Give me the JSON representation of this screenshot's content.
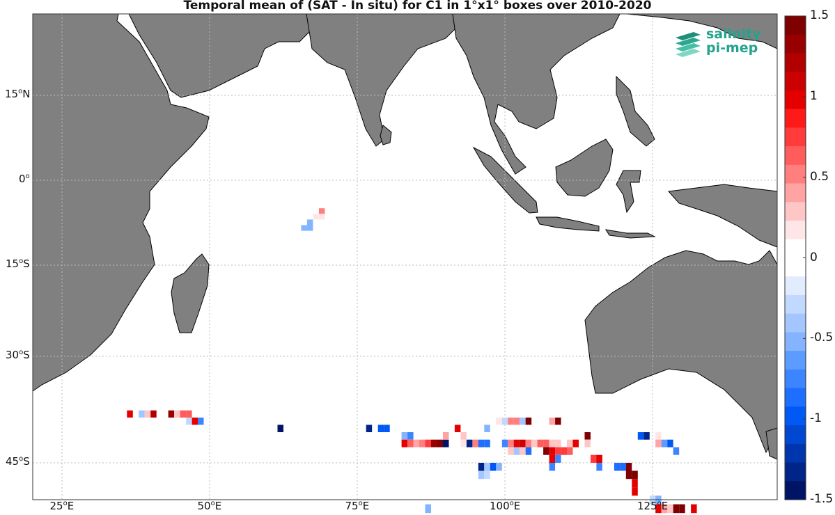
{
  "title": "Temporal mean of (SAT - In situ) for C1 in 1°x1° boxes over 2010-2020",
  "logo": {
    "line1": "salinity",
    "line2": "pi-mep",
    "icon": "wave-stack-icon",
    "color": "#21a38c"
  },
  "lon_ticks": [
    {
      "value": 25,
      "label": "25",
      "suffix": "E"
    },
    {
      "value": 50,
      "label": "50",
      "suffix": "E"
    },
    {
      "value": 75,
      "label": "75",
      "suffix": "E"
    },
    {
      "value": 100,
      "label": "100",
      "suffix": "E"
    },
    {
      "value": 125,
      "label": "125",
      "suffix": "E"
    }
  ],
  "lat_ticks": [
    {
      "value": 15,
      "label": "15",
      "suffix": "N"
    },
    {
      "value": 0,
      "label": "0",
      "suffix": ""
    },
    {
      "value": -15,
      "label": "15",
      "suffix": "S"
    },
    {
      "value": -30,
      "label": "30",
      "suffix": "S"
    },
    {
      "value": -45,
      "label": "45",
      "suffix": "S"
    }
  ],
  "colorbar": {
    "min": -1.5,
    "max": 1.5,
    "tick_labels": [
      "1.5",
      "1",
      "0.5",
      "0",
      "-0.5",
      "-1",
      "-1.5"
    ],
    "tick_values": [
      1.5,
      1,
      0.5,
      0,
      -0.5,
      -1,
      -1.5
    ],
    "colors_top_to_bottom": [
      "#7f0000",
      "#980000",
      "#b20000",
      "#cb0000",
      "#e50000",
      "#ff1a1a",
      "#ff3b3b",
      "#ff5c5c",
      "#ff7f7f",
      "#ffa3a3",
      "#ffc6c6",
      "#ffe6e6",
      "#ffffff",
      "#ffffff",
      "#e1ecff",
      "#c2d9ff",
      "#a3c6ff",
      "#84b3ff",
      "#5c9bff",
      "#3d85ff",
      "#1e6fff",
      "#0059f5",
      "#0047d1",
      "#0036ad",
      "#002589",
      "#001466"
    ]
  },
  "chart_data": {
    "type": "heatmap",
    "title": "Temporal mean of (SAT - In situ) for C1 in 1°x1° boxes over 2010-2020",
    "xlabel": "",
    "ylabel": "",
    "xlim": [
      20,
      146
    ],
    "ylim": [
      -50,
      28
    ],
    "colorscale_range": [
      -1.5,
      1.5
    ],
    "grid": true,
    "cells": [
      {
        "lon": 69,
        "lat": -5.5,
        "v": 0.5
      },
      {
        "lon": 68,
        "lat": -6.5,
        "v": 0.2
      },
      {
        "lon": 69,
        "lat": -6.5,
        "v": 0.2
      },
      {
        "lon": 67,
        "lat": -7.5,
        "v": -0.5
      },
      {
        "lon": 66,
        "lat": -8.5,
        "v": -0.5
      },
      {
        "lon": 67,
        "lat": -8.5,
        "v": -0.5
      },
      {
        "lon": 36.5,
        "lat": -38.5,
        "v": 1.0
      },
      {
        "lon": 38.5,
        "lat": -38.5,
        "v": -0.4
      },
      {
        "lon": 39.5,
        "lat": -38.5,
        "v": 0.3
      },
      {
        "lon": 40.5,
        "lat": -38.5,
        "v": 1.2
      },
      {
        "lon": 43.5,
        "lat": -38.5,
        "v": 1.3
      },
      {
        "lon": 44.5,
        "lat": -38.5,
        "v": 0.3
      },
      {
        "lon": 45.5,
        "lat": -38.5,
        "v": 0.6
      },
      {
        "lon": 46.5,
        "lat": -38.5,
        "v": 0.6
      },
      {
        "lon": 46.5,
        "lat": -39.5,
        "v": -0.3
      },
      {
        "lon": 47.5,
        "lat": -39.5,
        "v": 1.0
      },
      {
        "lon": 48.5,
        "lat": -39.5,
        "v": -0.7
      },
      {
        "lon": 62,
        "lat": -40.5,
        "v": -1.5
      },
      {
        "lon": 77,
        "lat": -40.5,
        "v": -1.3
      },
      {
        "lon": 79,
        "lat": -40.5,
        "v": -1.0
      },
      {
        "lon": 80,
        "lat": -40.5,
        "v": -1.0
      },
      {
        "lon": 83,
        "lat": -41.5,
        "v": -0.5
      },
      {
        "lon": 84,
        "lat": -41.5,
        "v": -0.8
      },
      {
        "lon": 83,
        "lat": -42.5,
        "v": 1.0
      },
      {
        "lon": 84,
        "lat": -42.5,
        "v": 0.6
      },
      {
        "lon": 85,
        "lat": -42.5,
        "v": 0.4
      },
      {
        "lon": 86,
        "lat": -42.5,
        "v": 0.5
      },
      {
        "lon": 87,
        "lat": -42.5,
        "v": 0.8
      },
      {
        "lon": 88,
        "lat": -42.5,
        "v": 1.3
      },
      {
        "lon": 89,
        "lat": -42.5,
        "v": 1.5
      },
      {
        "lon": 90,
        "lat": -42.5,
        "v": -1.5
      },
      {
        "lon": 90,
        "lat": -41.5,
        "v": 0.4
      },
      {
        "lon": 92,
        "lat": -40.5,
        "v": 1.0
      },
      {
        "lon": 93,
        "lat": -41.5,
        "v": 0.3
      },
      {
        "lon": 93,
        "lat": -42.5,
        "v": 0.2
      },
      {
        "lon": 94,
        "lat": -42.5,
        "v": -1.3
      },
      {
        "lon": 95,
        "lat": -42.5,
        "v": 0.5
      },
      {
        "lon": 96,
        "lat": -42.5,
        "v": -0.9
      },
      {
        "lon": 97,
        "lat": -42.5,
        "v": -0.9
      },
      {
        "lon": 97,
        "lat": -40.5,
        "v": -0.5
      },
      {
        "lon": 99,
        "lat": -39.5,
        "v": 0.2
      },
      {
        "lon": 100,
        "lat": -39.5,
        "v": -0.3
      },
      {
        "lon": 101,
        "lat": -39.5,
        "v": 0.5
      },
      {
        "lon": 102,
        "lat": -39.5,
        "v": 0.5
      },
      {
        "lon": 103,
        "lat": -39.5,
        "v": -0.4
      },
      {
        "lon": 104,
        "lat": -39.5,
        "v": 1.5
      },
      {
        "lon": 108,
        "lat": -39.5,
        "v": 0.4
      },
      {
        "lon": 109,
        "lat": -39.5,
        "v": 1.4
      },
      {
        "lon": 114,
        "lat": -41.5,
        "v": 1.4
      },
      {
        "lon": 100,
        "lat": -42.5,
        "v": -0.7
      },
      {
        "lon": 101,
        "lat": -42.5,
        "v": 0.5
      },
      {
        "lon": 102,
        "lat": -42.5,
        "v": 1.0
      },
      {
        "lon": 103,
        "lat": -42.5,
        "v": 1.1
      },
      {
        "lon": 104,
        "lat": -42.5,
        "v": 0.5
      },
      {
        "lon": 105,
        "lat": -42.5,
        "v": 0.3
      },
      {
        "lon": 106,
        "lat": -42.5,
        "v": 0.6
      },
      {
        "lon": 107,
        "lat": -42.5,
        "v": 0.6
      },
      {
        "lon": 108,
        "lat": -42.5,
        "v": 0.3
      },
      {
        "lon": 109,
        "lat": -42.5,
        "v": 0.3
      },
      {
        "lon": 111,
        "lat": -42.5,
        "v": 0.3
      },
      {
        "lon": 112,
        "lat": -42.5,
        "v": 1.0
      },
      {
        "lon": 114,
        "lat": -42.5,
        "v": 0.3
      },
      {
        "lon": 101,
        "lat": -43.5,
        "v": 0.3
      },
      {
        "lon": 102,
        "lat": -43.5,
        "v": -0.4
      },
      {
        "lon": 103,
        "lat": -43.5,
        "v": 0.3
      },
      {
        "lon": 104,
        "lat": -43.5,
        "v": -0.9
      },
      {
        "lon": 107,
        "lat": -43.5,
        "v": 1.5
      },
      {
        "lon": 108,
        "lat": -43.5,
        "v": 1.0
      },
      {
        "lon": 109,
        "lat": -43.5,
        "v": 0.8
      },
      {
        "lon": 110,
        "lat": -43.5,
        "v": 0.8
      },
      {
        "lon": 111,
        "lat": -43.5,
        "v": 0.6
      },
      {
        "lon": 108,
        "lat": -44.5,
        "v": 1.0
      },
      {
        "lon": 109,
        "lat": -44.5,
        "v": -0.8
      },
      {
        "lon": 108,
        "lat": -45.5,
        "v": -0.8
      },
      {
        "lon": 115,
        "lat": -44.5,
        "v": 0.8
      },
      {
        "lon": 116,
        "lat": -44.5,
        "v": 1.0
      },
      {
        "lon": 116,
        "lat": -45.5,
        "v": -0.8
      },
      {
        "lon": 123,
        "lat": -41.5,
        "v": -1.0
      },
      {
        "lon": 124,
        "lat": -41.5,
        "v": -1.3
      },
      {
        "lon": 126,
        "lat": -41.5,
        "v": 0.2
      },
      {
        "lon": 126,
        "lat": -42.5,
        "v": 0.4
      },
      {
        "lon": 127,
        "lat": -42.5,
        "v": -0.6
      },
      {
        "lon": 128,
        "lat": -42.5,
        "v": -1.0
      },
      {
        "lon": 129,
        "lat": -43.5,
        "v": -0.8
      },
      {
        "lon": 96,
        "lat": -45.5,
        "v": -1.3
      },
      {
        "lon": 97,
        "lat": -45.5,
        "v": -0.4
      },
      {
        "lon": 98,
        "lat": -45.5,
        "v": -1.0
      },
      {
        "lon": 99,
        "lat": -45.5,
        "v": -0.5
      },
      {
        "lon": 96,
        "lat": -46.5,
        "v": -0.4
      },
      {
        "lon": 97,
        "lat": -46.5,
        "v": -0.3
      },
      {
        "lon": 119,
        "lat": -45.5,
        "v": -0.9
      },
      {
        "lon": 120,
        "lat": -45.5,
        "v": -0.9
      },
      {
        "lon": 121,
        "lat": -45.5,
        "v": 1.5
      },
      {
        "lon": 121,
        "lat": -46.5,
        "v": 1.4
      },
      {
        "lon": 122,
        "lat": -46.5,
        "v": 1.4
      },
      {
        "lon": 122,
        "lat": -47.5,
        "v": 1.0
      },
      {
        "lon": 122,
        "lat": -48.5,
        "v": 1.0
      },
      {
        "lon": 125,
        "lat": -49.5,
        "v": -0.3
      },
      {
        "lon": 126,
        "lat": -49.5,
        "v": -0.5
      },
      {
        "lon": 126,
        "lat": -50.5,
        "v": 1.0
      },
      {
        "lon": 127,
        "lat": -50.5,
        "v": 0.4
      },
      {
        "lon": 128,
        "lat": -50.5,
        "v": 0.3
      },
      {
        "lon": 129,
        "lat": -50.5,
        "v": 1.5
      },
      {
        "lon": 130,
        "lat": -50.5,
        "v": 1.5
      },
      {
        "lon": 132,
        "lat": -50.5,
        "v": 1.0
      },
      {
        "lon": 87,
        "lat": -50.5,
        "v": -0.5
      }
    ]
  }
}
